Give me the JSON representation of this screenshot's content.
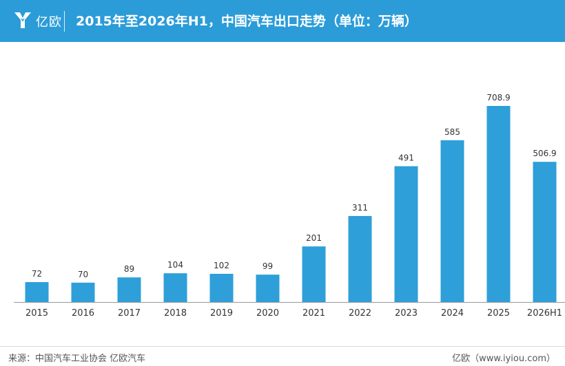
{
  "header": {
    "logo_text": "亿欧",
    "title": "2015年至2026年H1，中国汽车出口走势（单位：万辆）"
  },
  "footer": {
    "source": "来源：中国汽车工业协会 亿欧汽车",
    "credit": "亿欧（www.iyiou.com）"
  },
  "colors": {
    "header_bg": "#2b9cd8",
    "bar": "#2e9fd8",
    "label": "#333333",
    "axis": "#999999"
  },
  "chart_data": {
    "type": "bar",
    "title": "2015年至2026年H1，中国汽车出口走势（单位：万辆）",
    "xlabel": "",
    "ylabel": "",
    "categories": [
      "2015",
      "2016",
      "2017",
      "2018",
      "2019",
      "2020",
      "2021",
      "2022",
      "2023",
      "2024",
      "2025",
      "2026H1"
    ],
    "values": [
      72,
      70,
      89,
      104,
      102,
      99,
      201,
      311,
      491,
      585,
      708.9,
      506.9
    ],
    "value_labels": [
      "72",
      "70",
      "89",
      "104",
      "102",
      "99",
      "201",
      "311",
      "491",
      "585",
      "708.9",
      "506.9"
    ],
    "ylim": [
      0,
      708.9
    ],
    "grid": false,
    "legend": "none"
  }
}
